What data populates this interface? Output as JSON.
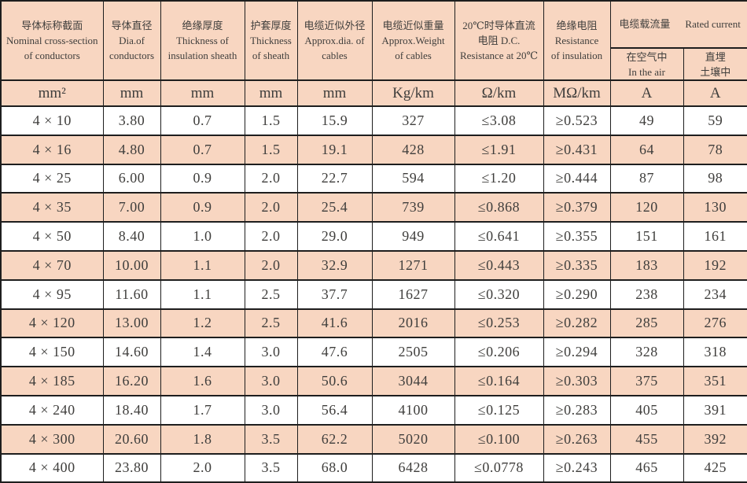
{
  "colors": {
    "peach_row_fill": "#f8d6c1",
    "white_row_fill": "#ffffff",
    "border": "#1e1e1e",
    "text": "#3f3e3c"
  },
  "table": {
    "rated_current_group": {
      "zh": "电缆载流量",
      "en": "Rated current"
    },
    "columns": [
      {
        "header": "导体标称截面\nNominal cross-section\nof conductors",
        "unit": "mm²"
      },
      {
        "header": "导体直径\nDia.of\nconductors",
        "unit": "mm"
      },
      {
        "header": "绝缘厚度\nThickness of\ninsulation sheath",
        "unit": "mm"
      },
      {
        "header": "护套厚度\nThickness\nof sheath",
        "unit": "mm"
      },
      {
        "header": "电缆近似外径\nApprox.dia. of\ncables",
        "unit": "mm"
      },
      {
        "header": "电缆近似重量\nApprox.Weight\nof cables",
        "unit": "Kg/km"
      },
      {
        "header": "20℃时导体直流\n电阻 D.C.\nResistance at 20℃",
        "unit": "Ω/km"
      },
      {
        "header": "绝缘电阻\nResistance\nof insulation",
        "unit": "MΩ/km"
      },
      {
        "header": "在空气中\nIn the air",
        "unit": "A"
      },
      {
        "header": "直埋\n土壤中",
        "unit": "A"
      }
    ],
    "rows": [
      [
        "4 × 10",
        "3.80",
        "0.7",
        "1.5",
        "15.9",
        "327",
        "≤3.08",
        "≥0.523",
        "49",
        "59"
      ],
      [
        "4 × 16",
        "4.80",
        "0.7",
        "1.5",
        "19.1",
        "428",
        "≤1.91",
        "≥0.431",
        "64",
        "78"
      ],
      [
        "4 × 25",
        "6.00",
        "0.9",
        "2.0",
        "22.7",
        "594",
        "≤1.20",
        "≥0.444",
        "87",
        "98"
      ],
      [
        "4 × 35",
        "7.00",
        "0.9",
        "2.0",
        "25.4",
        "739",
        "≤0.868",
        "≥0.379",
        "120",
        "130"
      ],
      [
        "4 × 50",
        "8.40",
        "1.0",
        "2.0",
        "29.0",
        "949",
        "≤0.641",
        "≥0.355",
        "151",
        "161"
      ],
      [
        "4 × 70",
        "10.00",
        "1.1",
        "2.0",
        "32.9",
        "1271",
        "≤0.443",
        "≥0.335",
        "183",
        "192"
      ],
      [
        "4 × 95",
        "11.60",
        "1.1",
        "2.5",
        "37.7",
        "1627",
        "≤0.320",
        "≥0.290",
        "238",
        "234"
      ],
      [
        "4 × 120",
        "13.00",
        "1.2",
        "2.5",
        "41.6",
        "2016",
        "≤0.253",
        "≥0.282",
        "285",
        "276"
      ],
      [
        "4 × 150",
        "14.60",
        "1.4",
        "3.0",
        "47.6",
        "2505",
        "≤0.206",
        "≥0.294",
        "328",
        "318"
      ],
      [
        "4 × 185",
        "16.20",
        "1.6",
        "3.0",
        "50.6",
        "3044",
        "≤0.164",
        "≥0.303",
        "375",
        "351"
      ],
      [
        "4 × 240",
        "18.40",
        "1.7",
        "3.0",
        "56.4",
        "4100",
        "≤0.125",
        "≥0.283",
        "405",
        "391"
      ],
      [
        "4 × 300",
        "20.60",
        "1.8",
        "3.5",
        "62.2",
        "5020",
        "≤0.100",
        "≥0.263",
        "455",
        "392"
      ],
      [
        "4 × 400",
        "23.80",
        "2.0",
        "3.5",
        "68.0",
        "6428",
        "≤0.0778",
        "≥0.243",
        "465",
        "425"
      ]
    ]
  }
}
